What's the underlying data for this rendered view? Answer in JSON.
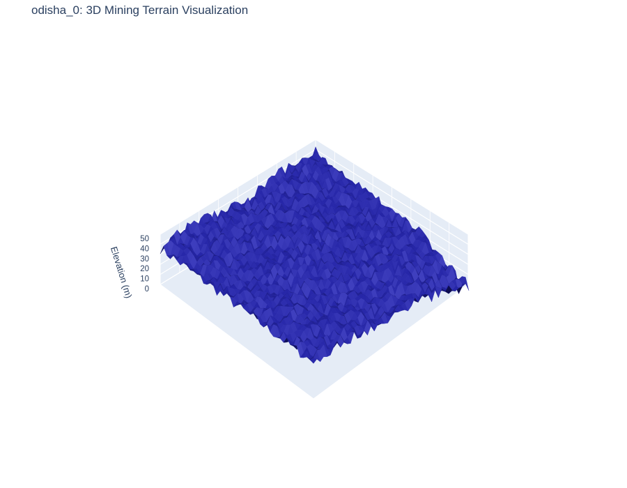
{
  "chart_data": {
    "type": "surface",
    "title": "odisha_0: 3D Mining Terrain Visualization",
    "zlabel": "Elevation (m)",
    "zticks": [
      0,
      10,
      20,
      30,
      40,
      50
    ],
    "zlim": [
      0,
      50
    ],
    "grid": true,
    "scene_background": "#E5ECF6",
    "surface_color": "#2626A8",
    "surface_shadow_color": "#080840",
    "surface_highlight_color": "#4A4AC8"
  }
}
